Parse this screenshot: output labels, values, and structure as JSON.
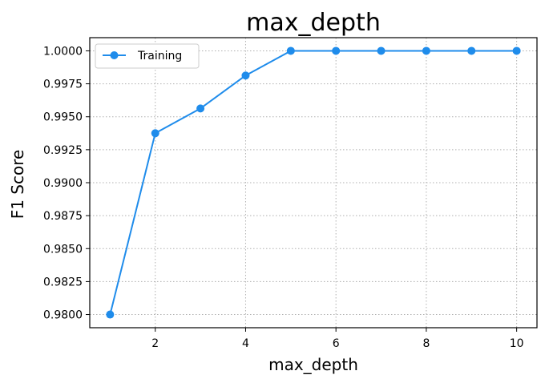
{
  "chart_data": {
    "type": "line",
    "title": "max_depth",
    "xlabel": "max_depth",
    "ylabel": "F1 Score",
    "x": [
      1,
      2,
      3,
      4,
      5,
      6,
      7,
      8,
      9,
      10
    ],
    "xlim": [
      0.55,
      10.45
    ],
    "ylim": [
      0.979,
      1.001
    ],
    "xticks": [
      2,
      4,
      6,
      8,
      10
    ],
    "yticks": [
      0.98,
      0.9825,
      0.985,
      0.9875,
      0.99,
      0.9925,
      0.995,
      0.9975,
      1.0
    ],
    "ytick_labels": [
      "0.9800",
      "0.9825",
      "0.9850",
      "0.9875",
      "0.9900",
      "0.9925",
      "0.9950",
      "0.9975",
      "1.0000"
    ],
    "grid": true,
    "legend": "upper-left",
    "series": [
      {
        "name": "Training",
        "color": "#1f8ceb",
        "marker": "circle",
        "values": [
          0.98,
          0.99375,
          0.99563,
          0.99813,
          1.0,
          1.0,
          1.0,
          1.0,
          1.0,
          1.0
        ]
      }
    ]
  }
}
